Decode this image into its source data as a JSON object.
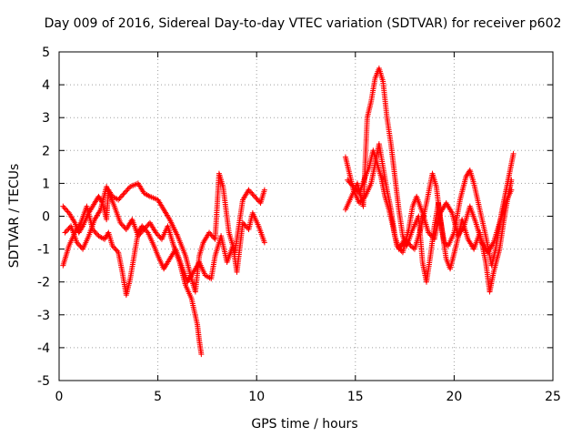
{
  "chart_data": {
    "type": "scatter",
    "title": "Day 009 of 2016, Sidereal Day-to-day VTEC variation (SDTVAR) for receiver p602",
    "xlabel": "GPS time / hours",
    "ylabel": "SDTVAR / TECUs",
    "xlim": [
      0,
      25
    ],
    "ylim": [
      -5,
      5
    ],
    "xticks": [
      "0",
      "5",
      "10",
      "15",
      "20",
      "25"
    ],
    "yticks": [
      "-5",
      "-4",
      "-3",
      "-2",
      "-1",
      "0",
      "1",
      "2",
      "3",
      "4",
      "5"
    ],
    "grid": true,
    "marker": "+",
    "colors": {
      "series": "#ff0000",
      "grid": "#a0a0a0",
      "axes": "#000000"
    },
    "series": [
      {
        "name": "SDTVAR",
        "trace_a": [
          [
            0.2,
            0.3
          ],
          [
            0.5,
            0.1
          ],
          [
            0.8,
            -0.2
          ],
          [
            1.0,
            -0.5
          ],
          [
            1.2,
            -0.3
          ],
          [
            1.5,
            0.1
          ],
          [
            1.8,
            0.4
          ],
          [
            2.0,
            0.6
          ],
          [
            2.2,
            0.4
          ],
          [
            2.4,
            -0.1
          ],
          [
            2.5,
            0.8
          ],
          [
            2.7,
            0.6
          ],
          [
            3.0,
            0.5
          ],
          [
            3.3,
            0.7
          ],
          [
            3.6,
            0.9
          ],
          [
            4.0,
            1.0
          ],
          [
            4.3,
            0.7
          ],
          [
            4.6,
            0.6
          ],
          [
            5.0,
            0.5
          ],
          [
            5.3,
            0.2
          ],
          [
            5.6,
            -0.1
          ],
          [
            6.0,
            -0.6
          ],
          [
            6.4,
            -1.2
          ],
          [
            6.7,
            -1.9
          ],
          [
            6.9,
            -2.3
          ],
          [
            7.1,
            -1.2
          ],
          [
            7.3,
            -0.8
          ],
          [
            7.6,
            -0.5
          ],
          [
            7.9,
            -0.7
          ],
          [
            8.1,
            1.3
          ],
          [
            8.3,
            0.9
          ],
          [
            8.6,
            -0.5
          ],
          [
            8.9,
            -1.1
          ],
          [
            9.1,
            -0.3
          ],
          [
            9.3,
            0.5
          ],
          [
            9.6,
            0.8
          ],
          [
            9.9,
            0.6
          ],
          [
            10.2,
            0.4
          ],
          [
            10.4,
            0.8
          ]
        ],
        "trace_b": [
          [
            0.2,
            -1.5
          ],
          [
            0.5,
            -0.9
          ],
          [
            0.8,
            -0.5
          ],
          [
            1.1,
            -0.2
          ],
          [
            1.4,
            0.3
          ],
          [
            1.7,
            -0.4
          ],
          [
            2.0,
            -0.6
          ],
          [
            2.3,
            -0.7
          ],
          [
            2.5,
            -0.5
          ],
          [
            2.7,
            -0.9
          ],
          [
            3.0,
            -1.1
          ],
          [
            3.2,
            -1.7
          ],
          [
            3.4,
            -2.4
          ],
          [
            3.6,
            -1.9
          ],
          [
            3.8,
            -1.2
          ],
          [
            4.0,
            -0.5
          ],
          [
            4.2,
            -0.3
          ],
          [
            4.5,
            -0.5
          ],
          [
            4.8,
            -0.9
          ],
          [
            5.0,
            -1.2
          ],
          [
            5.3,
            -1.6
          ],
          [
            5.6,
            -1.3
          ],
          [
            5.9,
            -1.0
          ],
          [
            6.2,
            -1.5
          ],
          [
            6.5,
            -2.0
          ],
          [
            6.8,
            -1.7
          ],
          [
            7.1,
            -1.4
          ],
          [
            7.4,
            -1.8
          ],
          [
            7.7,
            -1.9
          ],
          [
            7.9,
            -1.2
          ],
          [
            8.2,
            -0.6
          ],
          [
            8.5,
            -1.4
          ],
          [
            8.8,
            -0.9
          ],
          [
            9.0,
            -1.7
          ],
          [
            9.3,
            -0.2
          ],
          [
            9.6,
            -0.4
          ],
          [
            9.8,
            0.1
          ],
          [
            10.1,
            -0.3
          ],
          [
            10.4,
            -0.8
          ]
        ],
        "trace_c": [
          [
            0.3,
            -0.5
          ],
          [
            0.6,
            -0.3
          ],
          [
            0.9,
            -0.8
          ],
          [
            1.2,
            -1.0
          ],
          [
            1.5,
            -0.6
          ],
          [
            1.8,
            -0.1
          ],
          [
            2.1,
            0.2
          ],
          [
            2.4,
            0.9
          ],
          [
            2.8,
            0.3
          ],
          [
            3.1,
            -0.2
          ],
          [
            3.4,
            -0.4
          ],
          [
            3.7,
            -0.1
          ],
          [
            4.0,
            -0.6
          ],
          [
            4.3,
            -0.4
          ],
          [
            4.6,
            -0.2
          ],
          [
            4.9,
            -0.5
          ],
          [
            5.2,
            -0.7
          ],
          [
            5.5,
            -0.3
          ],
          [
            5.8,
            -0.9
          ],
          [
            6.1,
            -1.4
          ],
          [
            6.4,
            -2.1
          ],
          [
            6.7,
            -2.5
          ],
          [
            7.0,
            -3.3
          ],
          [
            7.1,
            -3.8
          ],
          [
            7.2,
            -4.2
          ]
        ],
        "trace_d": [
          [
            14.5,
            1.8
          ],
          [
            14.7,
            1.3
          ],
          [
            14.9,
            0.8
          ],
          [
            15.2,
            0.4
          ],
          [
            15.5,
            0.6
          ],
          [
            15.8,
            1.0
          ],
          [
            16.0,
            1.6
          ],
          [
            16.2,
            2.2
          ],
          [
            16.4,
            1.5
          ],
          [
            16.6,
            0.8
          ],
          [
            16.8,
            0.2
          ],
          [
            17.0,
            -0.6
          ],
          [
            17.2,
            -1.0
          ],
          [
            17.5,
            -0.7
          ],
          [
            17.8,
            -0.9
          ],
          [
            18.0,
            -1.0
          ],
          [
            18.3,
            -0.4
          ],
          [
            18.6,
            0.4
          ],
          [
            18.9,
            1.3
          ],
          [
            19.1,
            0.9
          ],
          [
            19.3,
            -0.1
          ],
          [
            19.5,
            -0.8
          ],
          [
            19.7,
            -0.9
          ],
          [
            20.0,
            -0.5
          ],
          [
            20.3,
            0.5
          ],
          [
            20.6,
            1.2
          ],
          [
            20.8,
            1.4
          ],
          [
            21.0,
            1.0
          ],
          [
            21.3,
            0.2
          ],
          [
            21.6,
            -0.6
          ],
          [
            21.9,
            -1.5
          ],
          [
            22.1,
            -1.0
          ],
          [
            22.4,
            0.1
          ],
          [
            22.6,
            0.7
          ],
          [
            22.8,
            1.3
          ],
          [
            23.0,
            1.9
          ]
        ],
        "trace_e": [
          [
            14.5,
            0.2
          ],
          [
            14.8,
            0.6
          ],
          [
            15.1,
            1.0
          ],
          [
            15.4,
            0.3
          ],
          [
            15.6,
            3.0
          ],
          [
            15.8,
            3.5
          ],
          [
            16.0,
            4.2
          ],
          [
            16.2,
            4.5
          ],
          [
            16.4,
            4.1
          ],
          [
            16.6,
            3.0
          ],
          [
            16.8,
            2.2
          ],
          [
            17.0,
            1.2
          ],
          [
            17.2,
            0.2
          ],
          [
            17.4,
            -0.6
          ],
          [
            17.6,
            -0.9
          ],
          [
            17.9,
            -0.4
          ],
          [
            18.2,
            0.0
          ],
          [
            18.4,
            -1.4
          ],
          [
            18.6,
            -2.0
          ],
          [
            18.8,
            -1.2
          ],
          [
            19.0,
            -0.3
          ],
          [
            19.2,
            0.4
          ],
          [
            19.4,
            -0.5
          ],
          [
            19.6,
            -1.3
          ],
          [
            19.8,
            -1.6
          ],
          [
            20.1,
            -0.9
          ],
          [
            20.4,
            -0.1
          ],
          [
            20.7,
            -0.7
          ],
          [
            21.0,
            -1.0
          ],
          [
            21.3,
            -0.5
          ],
          [
            21.6,
            -1.4
          ],
          [
            21.8,
            -2.3
          ],
          [
            22.0,
            -1.7
          ],
          [
            22.3,
            -1.0
          ],
          [
            22.5,
            -0.2
          ],
          [
            22.7,
            0.5
          ],
          [
            22.9,
            1.1
          ]
        ],
        "trace_f": [
          [
            14.6,
            1.1
          ],
          [
            14.9,
            0.9
          ],
          [
            15.2,
            0.7
          ],
          [
            15.5,
            1.2
          ],
          [
            15.7,
            1.5
          ],
          [
            15.9,
            2.0
          ],
          [
            16.1,
            1.6
          ],
          [
            16.3,
            1.2
          ],
          [
            16.5,
            0.6
          ],
          [
            16.7,
            0.2
          ],
          [
            16.9,
            -0.3
          ],
          [
            17.1,
            -0.9
          ],
          [
            17.4,
            -1.1
          ],
          [
            17.7,
            -0.4
          ],
          [
            17.9,
            0.3
          ],
          [
            18.1,
            0.6
          ],
          [
            18.4,
            0.1
          ],
          [
            18.7,
            -0.5
          ],
          [
            19.0,
            -0.7
          ],
          [
            19.3,
            0.1
          ],
          [
            19.6,
            0.4
          ],
          [
            19.9,
            0.1
          ],
          [
            20.2,
            -0.6
          ],
          [
            20.5,
            -0.3
          ],
          [
            20.8,
            0.3
          ],
          [
            21.1,
            -0.2
          ],
          [
            21.4,
            -0.8
          ],
          [
            21.7,
            -1.1
          ],
          [
            22.0,
            -0.8
          ],
          [
            22.3,
            -0.2
          ],
          [
            22.6,
            0.4
          ],
          [
            22.9,
            0.8
          ]
        ]
      }
    ]
  }
}
